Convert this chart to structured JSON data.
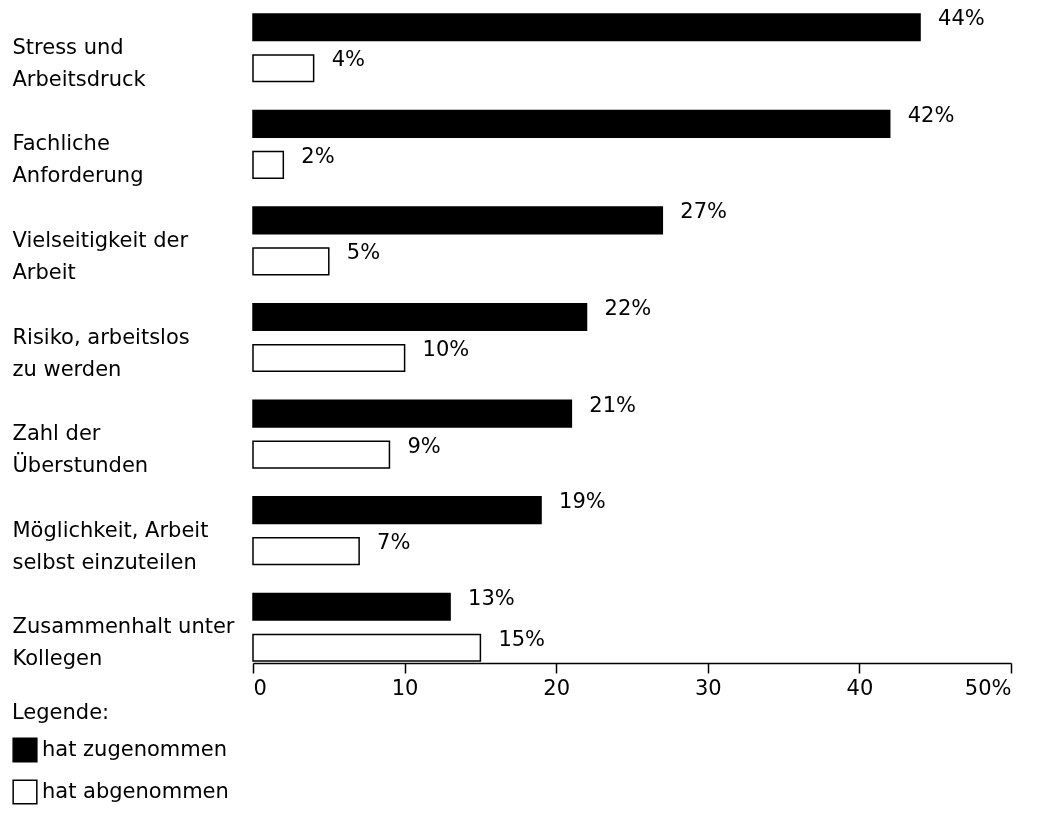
{
  "chart_data": {
    "type": "bar",
    "orientation": "horizontal",
    "categories": [
      "Stress und Arbeitsdruck",
      "Fachliche Anforderung",
      "Vielseitigkeit der Arbeit",
      "Risiko, arbeitslos zu werden",
      "Zahl der Überstunden",
      "Möglichkeit, Arbeit selbst einzuteilen",
      "Zusammenhalt unter Kollegen"
    ],
    "series": [
      {
        "name": "hat zugenommen",
        "color": "#000000",
        "values": [
          44,
          42,
          27,
          22,
          21,
          19,
          13
        ],
        "value_labels": [
          "44%",
          "42%",
          "27%",
          "22%",
          "21%",
          "19%",
          "13%"
        ]
      },
      {
        "name": "hat abgenommen",
        "color": "#ffffff",
        "values": [
          4,
          2,
          5,
          10,
          9,
          7,
          15
        ],
        "value_labels": [
          "4%",
          "2%",
          "5%",
          "10%",
          "9%",
          "7%",
          "15%"
        ]
      }
    ],
    "legend_title": "Legende:",
    "legend": "bottom left",
    "xlim": [
      0,
      50
    ],
    "xticks": [
      0,
      10,
      20,
      30,
      40,
      {
        "value": 50,
        "label": "50%"
      }
    ]
  }
}
